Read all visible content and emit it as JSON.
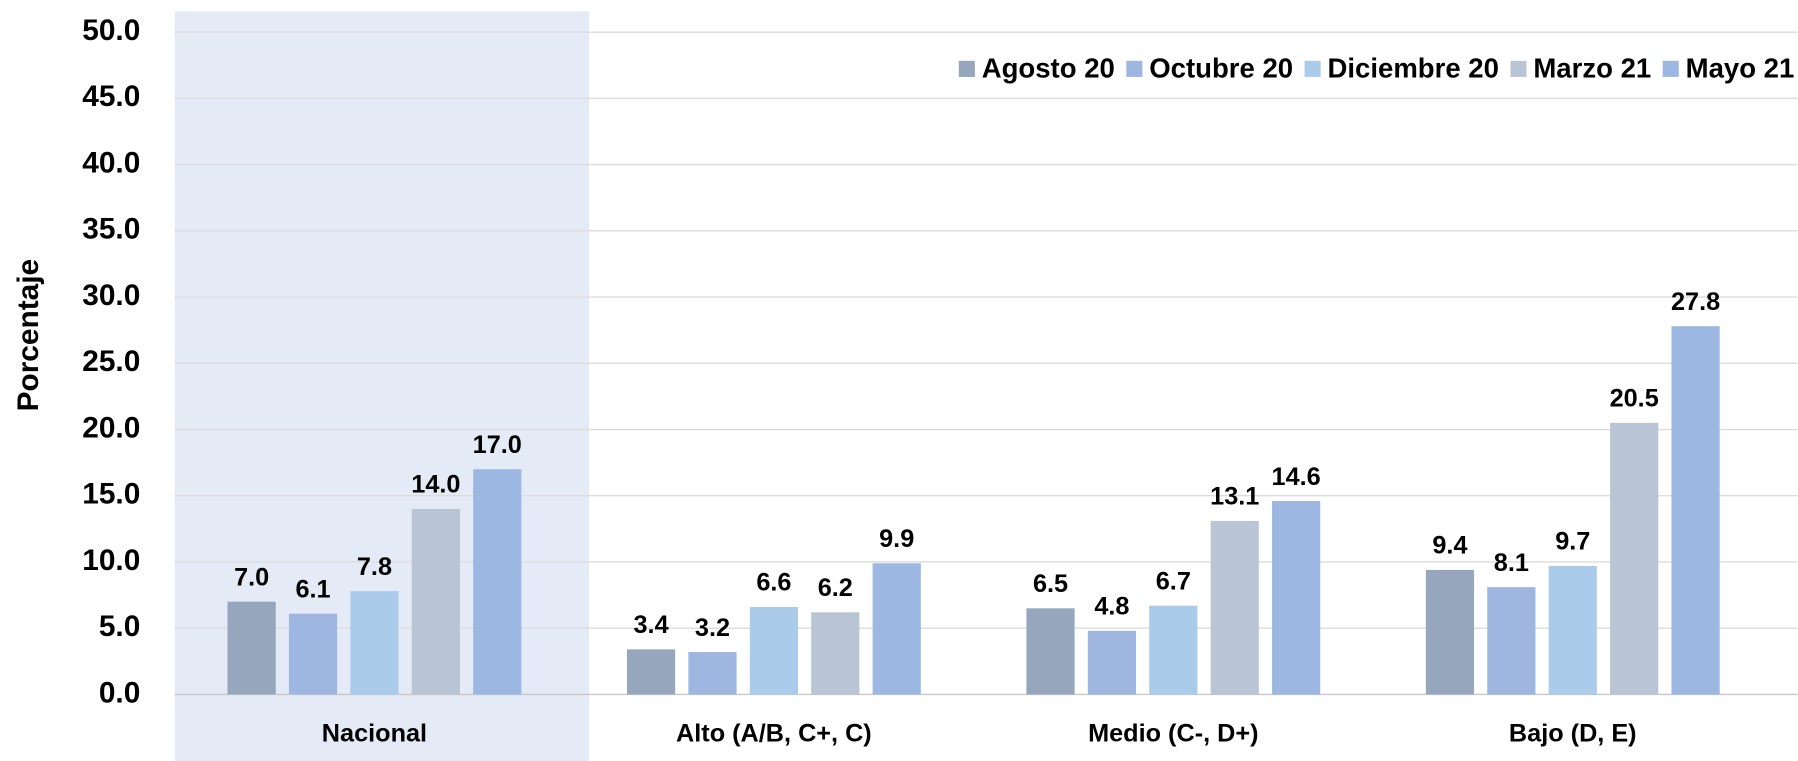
{
  "chart_data": {
    "type": "bar",
    "y_label": "Porcentaje",
    "categories": [
      "Nacional",
      "Alto (A/B, C+, C)",
      "Medio (C-, D+)",
      "Bajo (D, E)"
    ],
    "series": [
      {
        "name": "Agosto 20",
        "color": "#95a6bd",
        "values": [
          7.0,
          3.4,
          6.5,
          9.4
        ],
        "value_labels": [
          "7.0",
          "3.4",
          "6.5",
          "9.4"
        ]
      },
      {
        "name": "Octubre 20",
        "color": "#9eb6e0",
        "values": [
          6.1,
          3.2,
          4.8,
          8.1
        ],
        "value_labels": [
          "6.1",
          "3.2",
          "4.8",
          "8.1"
        ]
      },
      {
        "name": "Diciembre 20",
        "color": "#abcbea",
        "values": [
          7.8,
          6.6,
          6.7,
          9.7
        ],
        "value_labels": [
          "7.8",
          "6.6",
          "6.7",
          "9.7"
        ]
      },
      {
        "name": "Marzo 21",
        "color": "#b9c5d5",
        "values": [
          14.0,
          6.2,
          13.1,
          20.5
        ],
        "value_labels": [
          "14.0",
          "6.2",
          "13.1",
          "20.5"
        ]
      },
      {
        "name": "Mayo 21",
        "color": "#9cb7e2",
        "values": [
          17.0,
          9.9,
          14.6,
          27.8
        ],
        "value_labels": [
          "17.0",
          "9.9",
          "14.6",
          "27.8"
        ]
      }
    ],
    "ylim": [
      0,
      50
    ],
    "yticks": [
      {
        "value": 0,
        "label": "0.0"
      },
      {
        "value": 5,
        "label": "5.0"
      },
      {
        "value": 10,
        "label": "10.0"
      },
      {
        "value": 15,
        "label": "15.0"
      },
      {
        "value": 20,
        "label": "20.0"
      },
      {
        "value": 25,
        "label": "25.0"
      },
      {
        "value": 30,
        "label": "30.0"
      },
      {
        "value": 35,
        "label": "35.0"
      },
      {
        "value": 40,
        "label": "40.0"
      },
      {
        "value": 45,
        "label": "45.0"
      },
      {
        "value": 50,
        "label": "50.0"
      }
    ],
    "grid": true,
    "legend": "top-right"
  }
}
